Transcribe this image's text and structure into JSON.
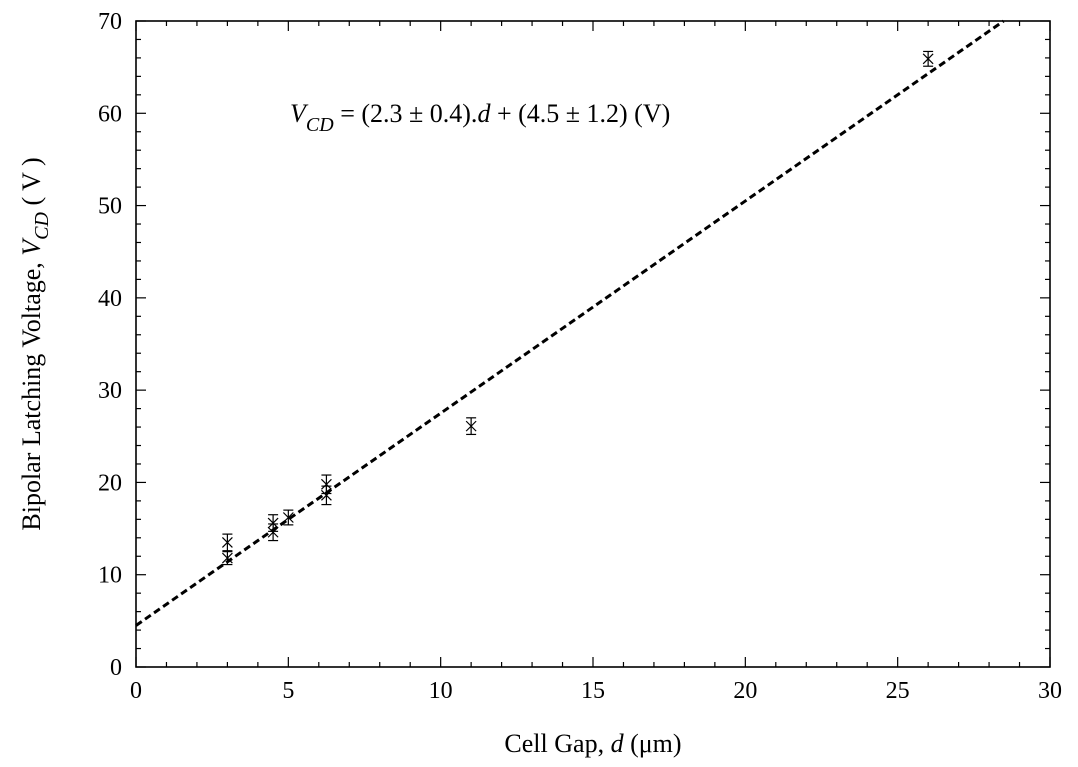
{
  "chart_data": {
    "type": "scatter",
    "xlabel": {
      "prefix": "Cell Gap, ",
      "var": "d",
      "suffix": " (μm)"
    },
    "ylabel": {
      "prefix": "Bipolar Latching Voltage, ",
      "var": "V",
      "sub": "CD",
      "suffix": " ( V )"
    },
    "xlim": [
      0,
      30
    ],
    "ylim": [
      0,
      70
    ],
    "x_ticks": [
      0,
      5,
      10,
      15,
      20,
      25,
      30
    ],
    "y_ticks": [
      0,
      10,
      20,
      30,
      40,
      50,
      60,
      70
    ],
    "x_tick_labels": [
      "0",
      "5",
      "10",
      "15",
      "20",
      "25",
      "30"
    ],
    "y_tick_labels": [
      "0",
      "10",
      "20",
      "30",
      "40",
      "50",
      "60",
      "70"
    ],
    "annotation": {
      "var": "V",
      "sub": "CD",
      "eq_a": " = (2.3 ± 0.4).",
      "eq_var": "d",
      "eq_b": " + (4.5 ± 1.2) (V)"
    },
    "fit_line": {
      "slope": 2.3,
      "intercept": 4.5,
      "style": "dashed"
    },
    "series": [
      {
        "marker": "x",
        "points": [
          {
            "x": 3.0,
            "y": 11.8,
            "err": 0.7
          },
          {
            "x": 3.0,
            "y": 13.5,
            "err": 0.9
          },
          {
            "x": 4.5,
            "y": 14.6,
            "err": 0.9
          },
          {
            "x": 4.5,
            "y": 15.6,
            "err": 0.9
          },
          {
            "x": 5.0,
            "y": 16.2,
            "err": 0.8
          },
          {
            "x": 6.25,
            "y": 18.6,
            "err": 1.0
          },
          {
            "x": 6.25,
            "y": 19.8,
            "err": 1.0
          },
          {
            "x": 11.0,
            "y": 26.1,
            "err": 0.9
          },
          {
            "x": 26.0,
            "y": 65.9,
            "err": 0.8
          }
        ]
      }
    ],
    "grid": false
  }
}
